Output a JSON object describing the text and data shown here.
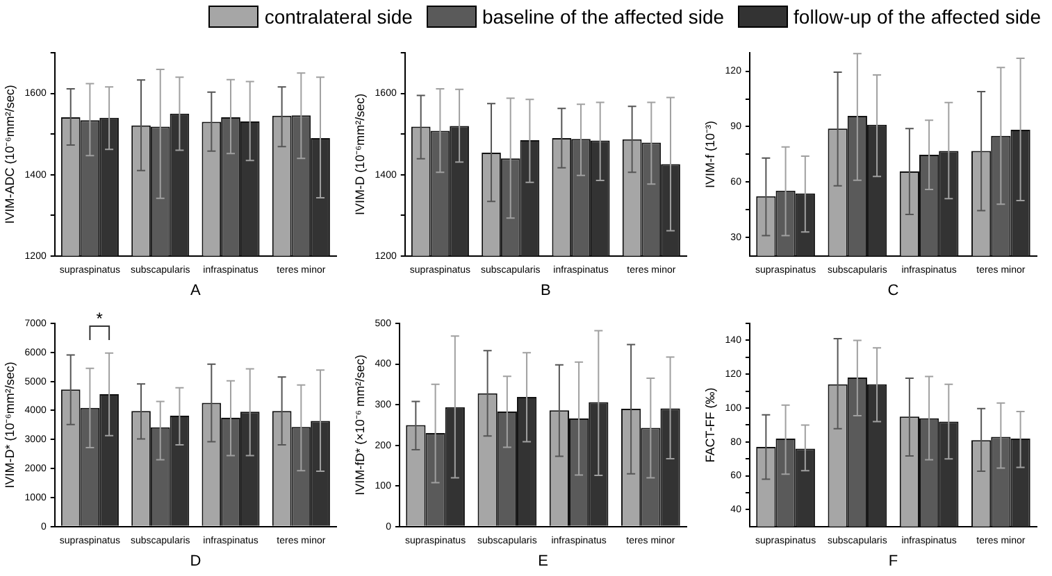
{
  "chart_data": [
    {
      "type": "bar",
      "xlabel": "A",
      "ylabel": "IVIM-ADC (10⁻⁶mm²/sec)",
      "categories": [
        "supraspinatus",
        "subscapularis",
        "infraspinatus",
        "teres minor"
      ],
      "ylim": [
        1200,
        1700
      ],
      "yticks": [
        1200,
        {
          "value": 1300,
          "label": null
        },
        1400,
        {
          "value": 1500,
          "label": null
        },
        1600,
        {
          "value": 1700,
          "label": null
        }
      ],
      "grid": false,
      "legend": "top right",
      "series": [
        {
          "name": "contralateral side",
          "color": "#a6a6a6",
          "values": [
            1541,
            1521,
            1530,
            1545
          ],
          "errors": [
            [
              1473,
              1611
            ],
            [
              1410,
              1633
            ],
            [
              1458,
              1603
            ],
            [
              1469,
              1616
            ]
          ]
        },
        {
          "name": "baseline of the affected side",
          "color": "#5a5a5a",
          "values": [
            1534,
            1518,
            1541,
            1546
          ],
          "errors": [
            [
              1447,
              1624
            ],
            [
              1342,
              1659
            ],
            [
              1452,
              1634
            ],
            [
              1440,
              1650
            ]
          ]
        },
        {
          "name": "follow-up of the affected side",
          "color": "#333333",
          "values": [
            1540,
            1550,
            1531,
            1490
          ],
          "errors": [
            [
              1462,
              1616
            ],
            [
              1460,
              1640
            ],
            [
              1435,
              1629
            ],
            [
              1343,
              1640
            ]
          ]
        }
      ]
    },
    {
      "type": "bar",
      "xlabel": "B",
      "ylabel": "IVIM-D (10⁻⁶mm²/sec)",
      "categories": [
        "supraspinatus",
        "subscapularis",
        "infraspinatus",
        "teres minor"
      ],
      "ylim": [
        1200,
        1700
      ],
      "yticks": [
        1200,
        {
          "value": 1300,
          "label": null
        },
        1400,
        {
          "value": 1500,
          "label": null
        },
        1600,
        {
          "value": 1700,
          "label": null
        }
      ],
      "grid": false,
      "series": [
        {
          "color": "#a6a6a6",
          "values": [
            1518,
            1454,
            1490,
            1487
          ],
          "errors": [
            [
              1439,
              1595
            ],
            [
              1334,
              1575
            ],
            [
              1417,
              1563
            ],
            [
              1406,
              1568
            ]
          ]
        },
        {
          "color": "#5a5a5a",
          "values": [
            1508,
            1440,
            1488,
            1479
          ],
          "errors": [
            [
              1406,
              1611
            ],
            [
              1293,
              1588
            ],
            [
              1398,
              1573
            ],
            [
              1377,
              1578
            ]
          ]
        },
        {
          "color": "#333333",
          "values": [
            1520,
            1485,
            1484,
            1426
          ],
          "errors": [
            [
              1431,
              1610
            ],
            [
              1381,
              1585
            ],
            [
              1386,
              1578
            ],
            [
              1262,
              1590
            ]
          ]
        }
      ]
    },
    {
      "type": "bar",
      "xlabel": "C",
      "ylabel": "IVIM-f (10⁻³)",
      "categories": [
        "supraspinatus",
        "subscapularis",
        "infraspinatus",
        "teres minor"
      ],
      "ylim": [
        20,
        130
      ],
      "yticks": [
        30,
        {
          "value": 45,
          "label": null
        },
        60,
        {
          "value": 75,
          "label": null
        },
        90,
        {
          "value": 105,
          "label": null
        },
        120
      ],
      "grid": false,
      "series": [
        {
          "color": "#a6a6a6",
          "values": [
            52.3,
            89,
            65.8,
            76.8
          ],
          "errors": [
            [
              31,
              73
            ],
            [
              58,
              119.5
            ],
            [
              42.5,
              89
            ],
            [
              44.5,
              109
            ]
          ]
        },
        {
          "color": "#5a5a5a",
          "values": [
            55.3,
            95.8,
            74.8,
            85
          ],
          "errors": [
            [
              31,
              79
            ],
            [
              61,
              129.5
            ],
            [
              56,
              93.5
            ],
            [
              48,
              122
            ]
          ]
        },
        {
          "color": "#333333",
          "values": [
            53.8,
            91,
            76.8,
            88.3
          ],
          "errors": [
            [
              33,
              74
            ],
            [
              63,
              118
            ],
            [
              51,
              103
            ],
            [
              50,
              127
            ]
          ]
        }
      ]
    },
    {
      "type": "bar",
      "xlabel": "D",
      "ylabel": "IVIM-D* (10⁻⁶mm²/sec)",
      "categories": [
        "supraspinatus",
        "subscapularis",
        "infraspinatus",
        "teres minor"
      ],
      "ylim": [
        0,
        7000
      ],
      "yticks": [
        0,
        1000,
        2000,
        3000,
        4000,
        5000,
        6000,
        7000
      ],
      "grid": false,
      "annotations": [
        "*"
      ],
      "series": [
        {
          "color": "#a6a6a6",
          "values": [
            4720,
            3980,
            4260,
            3980
          ],
          "errors": [
            [
              3514,
              5914
            ],
            [
              3020,
              4913
            ],
            [
              2925,
              5596
            ],
            [
              2814,
              5151
            ]
          ]
        },
        {
          "color": "#5a5a5a",
          "values": [
            4090,
            3420,
            3750,
            3430
          ],
          "errors": [
            [
              2720,
              5453
            ],
            [
              2300,
              4308
            ],
            [
              2448,
              5024
            ],
            [
              1924,
              4881
            ]
          ]
        },
        {
          "color": "#333333",
          "values": [
            4560,
            3820,
            3960,
            3640
          ],
          "errors": [
            [
              3132,
              5978
            ],
            [
              2814,
              4785
            ],
            [
              2448,
              5437
            ],
            [
              1908,
              5390
            ]
          ]
        }
      ]
    },
    {
      "type": "bar",
      "xlabel": "E",
      "ylabel": "IVIM-fD* (×10⁻⁶ mm²/sec)",
      "categories": [
        "supraspinatus",
        "subscapularis",
        "infraspinatus",
        "teres minor"
      ],
      "ylim": [
        0,
        500
      ],
      "yticks": [
        0,
        100,
        200,
        300,
        400,
        500
      ],
      "grid": false,
      "series": [
        {
          "color": "#a6a6a6",
          "values": [
            250,
            328,
            286,
            290
          ],
          "errors": [
            [
              189,
              308
            ],
            [
              223,
              433
            ],
            [
              173,
              398
            ],
            [
              130,
              448
            ]
          ]
        },
        {
          "color": "#5a5a5a",
          "values": [
            230,
            283,
            266,
            243
          ],
          "errors": [
            [
              108,
              350
            ],
            [
              195,
              370
            ],
            [
              127,
              405
            ],
            [
              120,
              365
            ]
          ]
        },
        {
          "color": "#333333",
          "values": [
            294,
            319,
            306,
            291
          ],
          "errors": [
            [
              120,
              469
            ],
            [
              209,
              428
            ],
            [
              126,
              482
            ],
            [
              167,
              417
            ]
          ]
        }
      ]
    },
    {
      "type": "bar",
      "xlabel": "F",
      "ylabel": "FACT-FF (‰)",
      "categories": [
        "supraspinatus",
        "subscapularis",
        "infraspinatus",
        "teres minor"
      ],
      "ylim": [
        30,
        150
      ],
      "yticks": [
        40,
        {
          "value": 50,
          "label": null
        },
        60,
        {
          "value": 70,
          "label": null
        },
        80,
        {
          "value": 90,
          "label": null
        },
        100,
        {
          "value": 110,
          "label": null
        },
        120,
        {
          "value": 130,
          "label": null
        },
        140,
        {
          "value": 150,
          "label": null
        }
      ],
      "grid": false,
      "series": [
        {
          "color": "#a6a6a6",
          "values": [
            77,
            114,
            95,
            81
          ],
          "errors": [
            [
              58,
              96
            ],
            [
              87.8,
              141
            ],
            [
              71.7,
              117.6
            ],
            [
              62.7,
              99.7
            ]
          ]
        },
        {
          "color": "#5a5a5a",
          "values": [
            82,
            118,
            94,
            83
          ],
          "errors": [
            [
              61,
              101.7
            ],
            [
              95.5,
              140
            ],
            [
              69.5,
              118.6
            ],
            [
              64.6,
              103
            ]
          ]
        },
        {
          "color": "#333333",
          "values": [
            76,
            114,
            92,
            82
          ],
          "errors": [
            [
              63,
              90
            ],
            [
              92,
              135.6
            ],
            [
              70,
              114
            ],
            [
              65,
              98
            ]
          ]
        }
      ]
    }
  ]
}
